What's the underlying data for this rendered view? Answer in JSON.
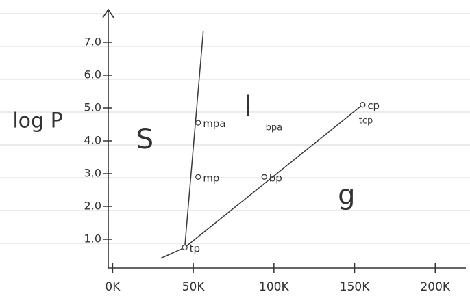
{
  "chart_data": {
    "type": "line",
    "y_label": "log P",
    "xlim": [
      -4,
      219
    ],
    "ylim": [
      0,
      8
    ],
    "xticks": [
      {
        "value": 0,
        "label": "0K"
      },
      {
        "value": 50,
        "label": "50K"
      },
      {
        "value": 100,
        "label": "100K"
      },
      {
        "value": 150,
        "label": "150K"
      },
      {
        "value": 200,
        "label": "200K"
      }
    ],
    "yticks": [
      {
        "value": 1,
        "label": "1.0"
      },
      {
        "value": 2,
        "label": "2.0"
      },
      {
        "value": 3,
        "label": "3.0"
      },
      {
        "value": 4,
        "label": "4.0"
      },
      {
        "value": 5,
        "label": "5.0"
      },
      {
        "value": 6,
        "label": "6.0"
      },
      {
        "value": 7,
        "label": "7.0"
      }
    ],
    "color": "#3a3a3a",
    "series": [
      {
        "x": [
          44.7,
          56.2
        ],
        "y": [
          0.75,
          7.35
        ]
      },
      {
        "x": [
          29.8,
          44.7
        ],
        "y": [
          0.42,
          0.75
        ]
      },
      {
        "x": [
          44.7,
          155
        ],
        "y": [
          0.75,
          5.1
        ]
      }
    ],
    "points": [
      {
        "label": "tp",
        "x": 44.7,
        "y": 0.75
      },
      {
        "label": "mp",
        "x": 53,
        "y": 2.9
      },
      {
        "label": "mpa",
        "x": 53,
        "y": 4.55
      },
      {
        "label": "bp",
        "x": 94,
        "y": 2.9
      },
      {
        "label": "cp",
        "x": 155,
        "y": 5.1
      }
    ],
    "annotations": [
      {
        "text": "bpa",
        "x": 100,
        "y": 4.4
      },
      {
        "text": "tcp",
        "x": 157,
        "y": 4.6
      },
      {
        "text": "S",
        "x": 20,
        "y": 4.0
      },
      {
        "text": "l",
        "x": 84,
        "y": 5.0
      },
      {
        "text": "g",
        "x": 145,
        "y": 2.3
      }
    ]
  }
}
